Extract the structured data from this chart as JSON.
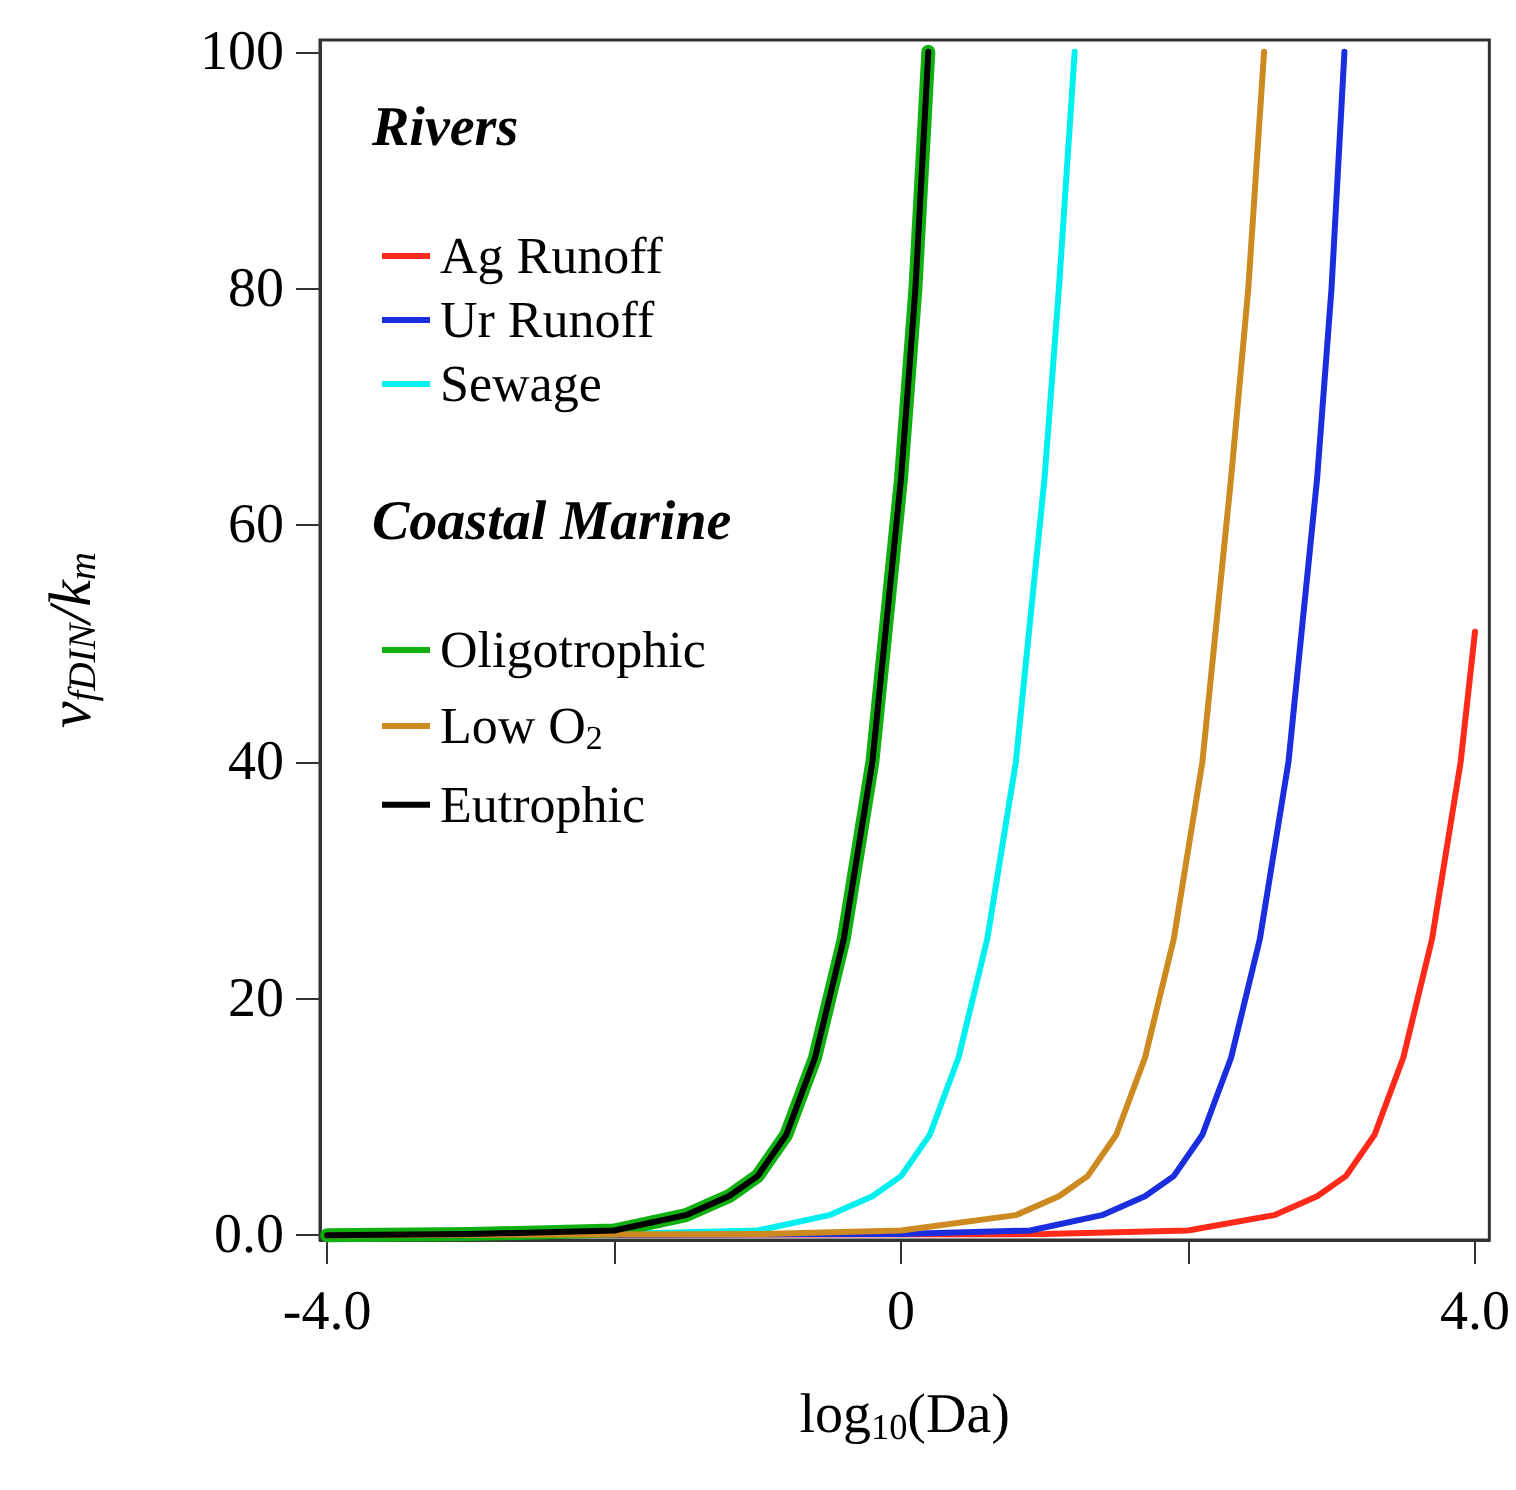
{
  "chart_data": {
    "type": "line",
    "xlabel": "log$_{10}$(Da)",
    "ylabel": "v$_{fDIN}$/k$_{m}$",
    "xlim": [
      -4.05,
      4.1
    ],
    "ylim": [
      -0.4,
      101
    ],
    "xticks": [
      {
        "value": -4,
        "label": "-4.0"
      },
      {
        "value": -2,
        "label": null
      },
      0,
      {
        "value": 2,
        "label": null
      },
      {
        "value": 4,
        "label": "4.0"
      }
    ],
    "yticks": [
      {
        "value": 0,
        "label": "0.0"
      },
      20,
      40,
      60,
      80,
      100
    ],
    "grid": false,
    "legend": "top left",
    "marker": "none",
    "line_style": "solid",
    "annotations": [
      "Rivers",
      "Coastal Marine"
    ],
    "series": [
      {
        "name": "Ag Runoff",
        "color": "#ff2a1a",
        "x": [
          -4,
          1,
          2,
          2.6,
          2.9,
          3.1,
          3.3,
          3.5,
          3.7,
          3.9,
          4
        ],
        "values": [
          0,
          0.1,
          0.4,
          1.7,
          3.3,
          5,
          8.5,
          15,
          25,
          40,
          51
        ]
      },
      {
        "name": "Ur Runoff",
        "color": "#1a2ee0",
        "x": [
          -4,
          0,
          0.9,
          1.4,
          1.7,
          1.9,
          2.1,
          2.3,
          2.5,
          2.7,
          2.9,
          3.0,
          3.09
        ],
        "values": [
          0,
          0.1,
          0.4,
          1.7,
          3.3,
          5,
          8.5,
          15,
          25,
          40,
          64,
          80,
          100
        ]
      },
      {
        "name": "Sewage",
        "color": "#00f0f0",
        "x": [
          -4,
          -2,
          -1,
          -0.5,
          -0.2,
          0,
          0.2,
          0.4,
          0.6,
          0.8,
          1,
          1.1,
          1.21
        ],
        "values": [
          0,
          0.1,
          0.4,
          1.7,
          3.3,
          5,
          8.5,
          15,
          25,
          40,
          64,
          80,
          100
        ]
      },
      {
        "name": "Oligotrophic",
        "color": "#10b010",
        "x": [
          -4,
          -3,
          -2,
          -1.5,
          -1.2,
          -1,
          -0.8,
          -0.6,
          -0.4,
          -0.2,
          0,
          0.1,
          0.19
        ],
        "values": [
          0,
          0.1,
          0.4,
          1.7,
          3.3,
          5,
          8.5,
          15,
          25,
          40,
          64,
          80,
          100
        ]
      },
      {
        "name": "Low O$_{2}$",
        "color": "#cc8a20",
        "x": [
          -4,
          -1,
          0,
          0.8,
          1.1,
          1.3,
          1.5,
          1.7,
          1.9,
          2.1,
          2.3,
          2.42,
          2.53
        ],
        "values": [
          0,
          0.1,
          0.4,
          1.7,
          3.3,
          5,
          8.5,
          15,
          25,
          40,
          64,
          80,
          100
        ]
      },
      {
        "name": "Eutrophic",
        "color": "#000000",
        "x": [
          -4,
          -3,
          -2,
          -1.5,
          -1.2,
          -1,
          -0.8,
          -0.6,
          -0.4,
          -0.2,
          0,
          0.1,
          0.19
        ],
        "values": [
          0,
          0.1,
          0.4,
          1.7,
          3.3,
          5,
          8.5,
          15,
          25,
          40,
          64,
          80,
          100
        ]
      }
    ]
  }
}
